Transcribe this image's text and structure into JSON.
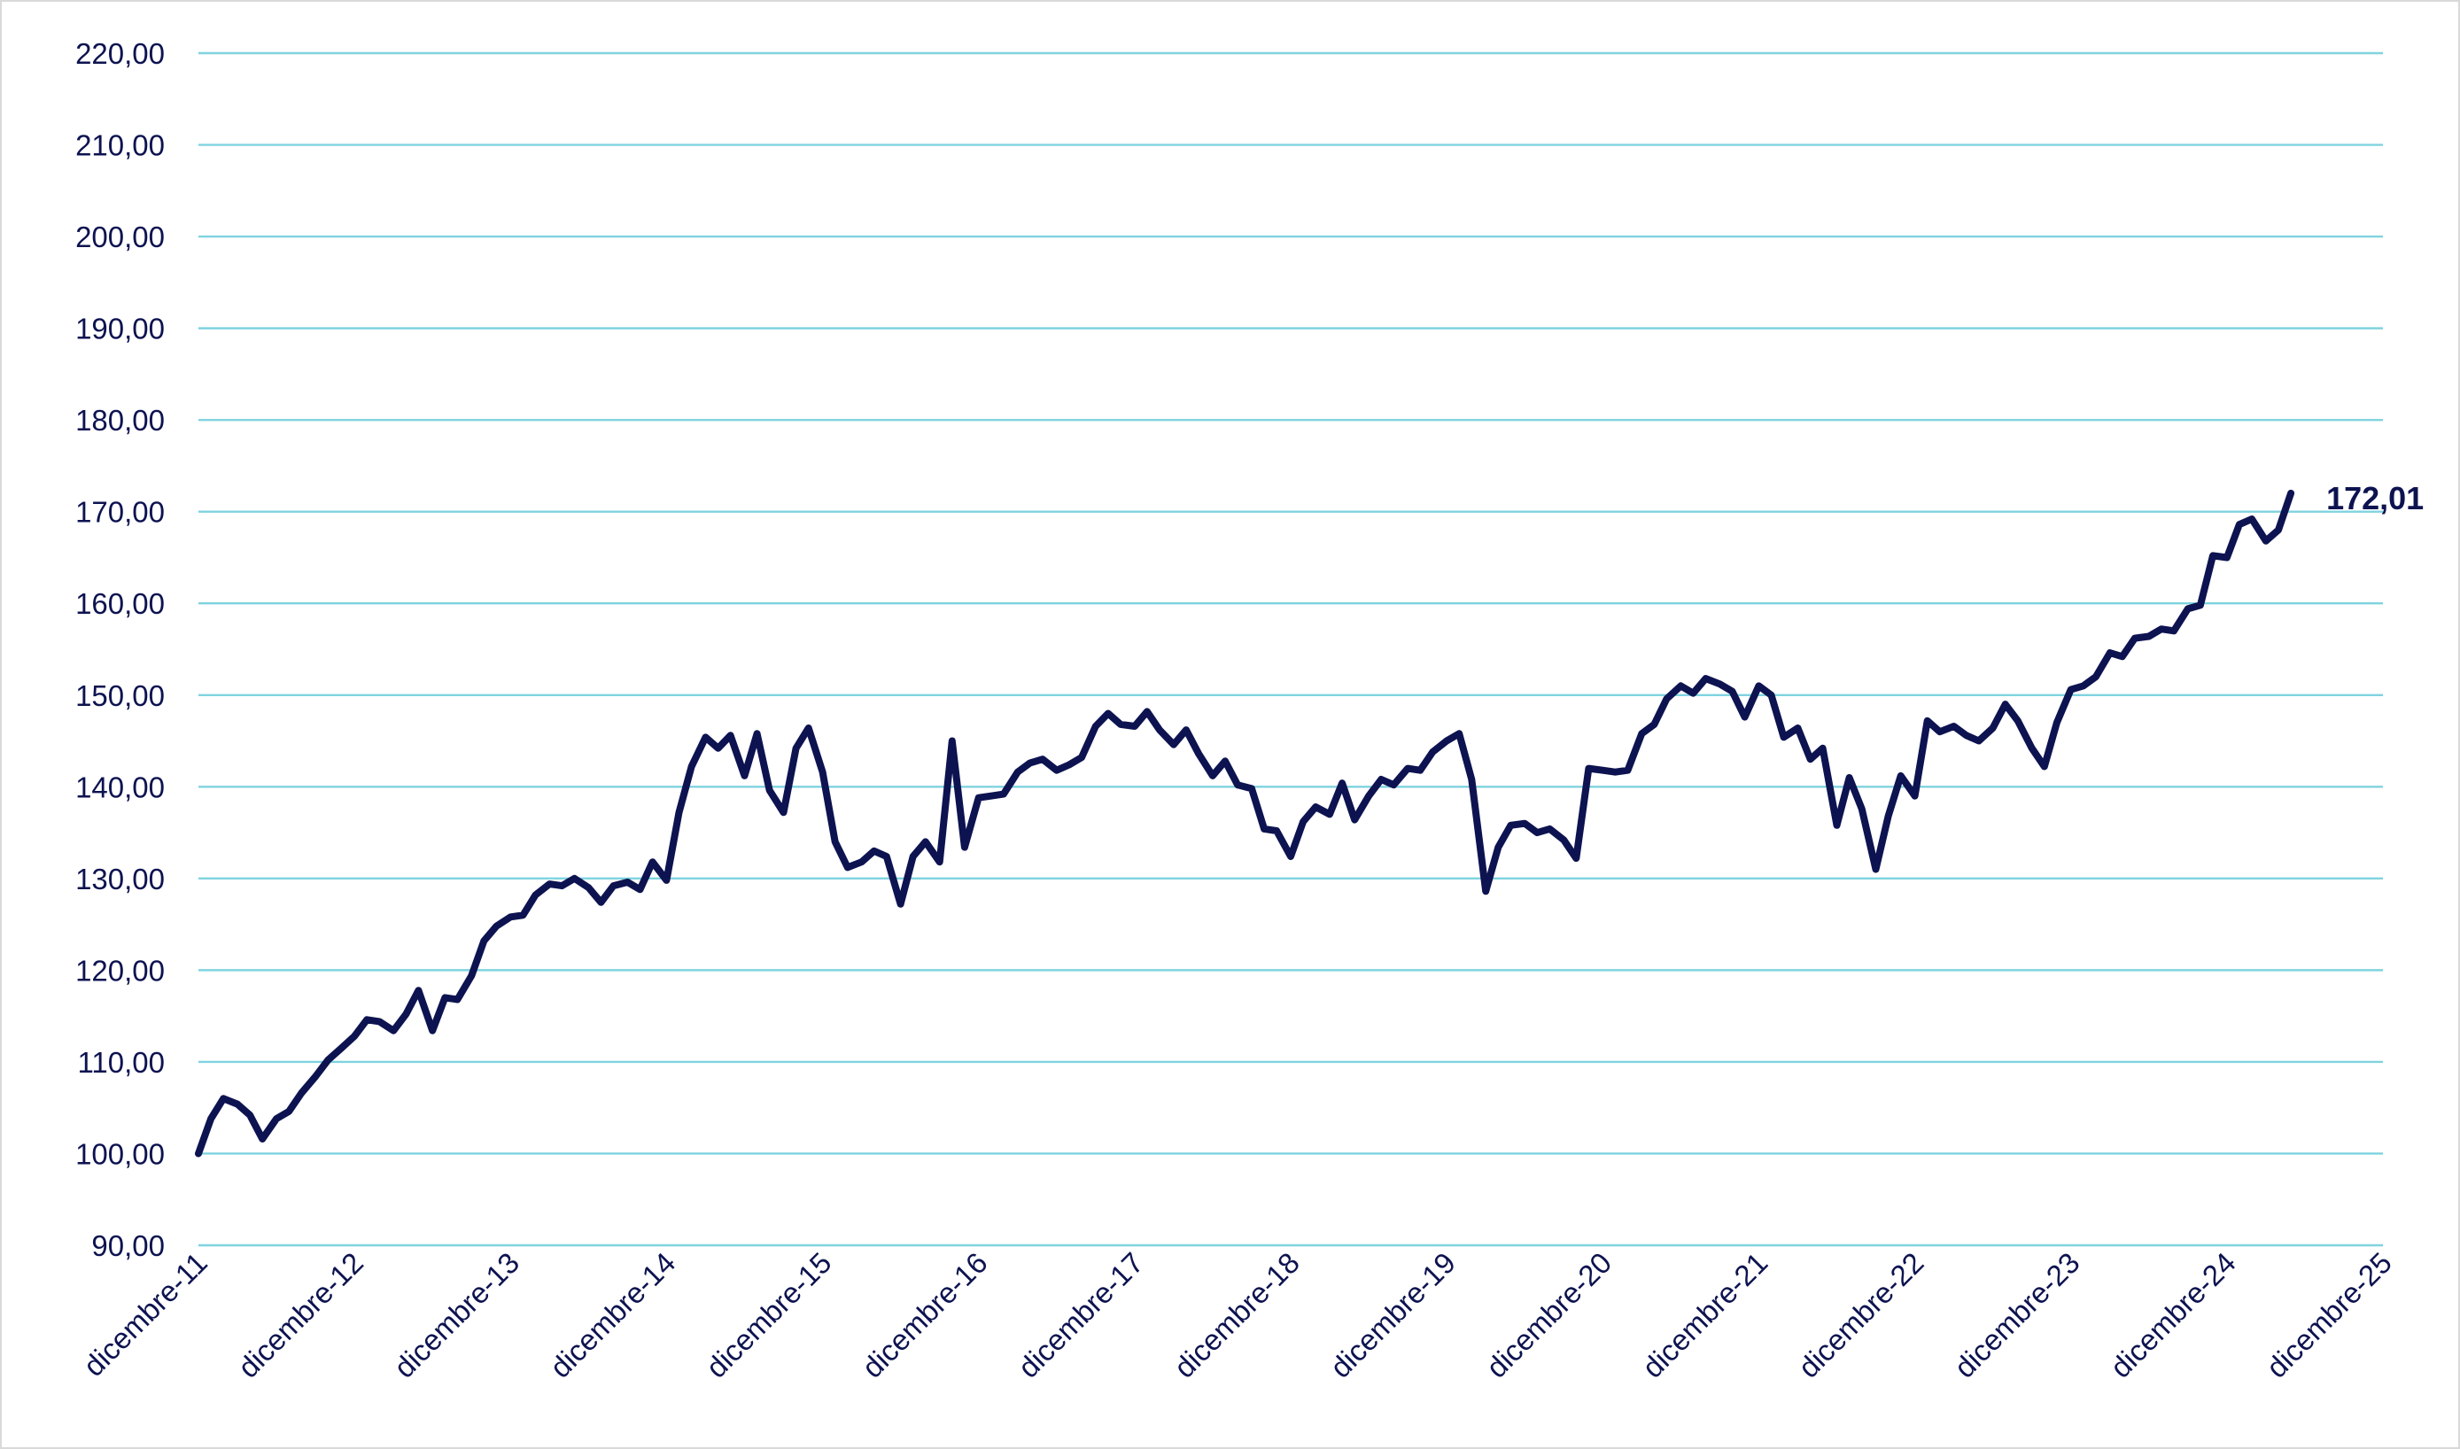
{
  "chart_data": {
    "type": "line",
    "title": "",
    "xlabel": "",
    "ylabel": "",
    "ylim": [
      90,
      220
    ],
    "yticks": [
      "90,00",
      "100,00",
      "110,00",
      "120,00",
      "130,00",
      "140,00",
      "150,00",
      "160,00",
      "170,00",
      "180,00",
      "190,00",
      "200,00",
      "210,00",
      "220,00"
    ],
    "yticks_values": [
      90,
      100,
      110,
      120,
      130,
      140,
      150,
      160,
      170,
      180,
      190,
      200,
      210,
      220
    ],
    "xticks": [
      "dicembre-11",
      "dicembre-12",
      "dicembre-13",
      "dicembre-14",
      "dicembre-15",
      "dicembre-16",
      "dicembre-17",
      "dicembre-18",
      "dicembre-19",
      "dicembre-20",
      "dicembre-21",
      "dicembre-22",
      "dicembre-23",
      "dicembre-24",
      "dicembre-25"
    ],
    "xlim": [
      2011.92,
      2025.92
    ],
    "grid": true,
    "legend": "none",
    "colors": {
      "line": "#0d1350",
      "grid": "#7fd3df",
      "text": "#0d1350"
    },
    "end_label": "172,01",
    "series": [
      {
        "x": [
          2011.92,
          2012.0,
          2012.08,
          2012.17,
          2012.25,
          2012.33,
          2012.42,
          2012.5,
          2012.58,
          2012.67,
          2012.75,
          2012.83,
          2012.92,
          2013.0,
          2013.08,
          2013.17,
          2013.25,
          2013.33,
          2013.42,
          2013.5,
          2013.58,
          2013.67,
          2013.75,
          2013.83,
          2013.92,
          2014.0,
          2014.08,
          2014.17,
          2014.25,
          2014.33,
          2014.42,
          2014.5,
          2014.58,
          2014.67,
          2014.75,
          2014.83,
          2014.92,
          2015.0,
          2015.08,
          2015.17,
          2015.25,
          2015.33,
          2015.42,
          2015.5,
          2015.58,
          2015.67,
          2015.75,
          2015.83,
          2015.92,
          2016.0,
          2016.08,
          2016.17,
          2016.25,
          2016.33,
          2016.42,
          2016.5,
          2016.58,
          2016.67,
          2016.75,
          2016.83,
          2016.92,
          2017.0,
          2017.08,
          2017.17,
          2017.25,
          2017.33,
          2017.42,
          2017.5,
          2017.58,
          2017.67,
          2017.75,
          2017.83,
          2017.92,
          2018.0,
          2018.08,
          2018.17,
          2018.25,
          2018.33,
          2018.42,
          2018.5,
          2018.58,
          2018.67,
          2018.75,
          2018.83,
          2018.92,
          2019.0,
          2019.08,
          2019.17,
          2019.25,
          2019.33,
          2019.42,
          2019.5,
          2019.58,
          2019.67,
          2019.75,
          2019.83,
          2019.92,
          2020.0,
          2020.08,
          2020.17,
          2020.25,
          2020.33,
          2020.42,
          2020.5,
          2020.58,
          2020.67,
          2020.75,
          2020.83,
          2020.92,
          2021.0,
          2021.08,
          2021.17,
          2021.25,
          2021.33,
          2021.42,
          2021.5,
          2021.58,
          2021.67,
          2021.75,
          2021.83,
          2021.92,
          2022.0,
          2022.08,
          2022.17,
          2022.25,
          2022.33,
          2022.42,
          2022.5,
          2022.58,
          2022.67,
          2022.75,
          2022.83,
          2022.92,
          2023.0,
          2023.08,
          2023.17,
          2023.25,
          2023.33,
          2023.42,
          2023.5,
          2023.58,
          2023.67,
          2023.75,
          2023.83,
          2023.92,
          2024.0,
          2024.08,
          2024.17,
          2024.25,
          2024.33,
          2024.42,
          2024.5,
          2024.58,
          2024.67,
          2024.75,
          2024.83,
          2024.92,
          2025.0,
          2025.08,
          2025.17,
          2025.25,
          2025.33
        ],
        "values": [
          100.0,
          103.8,
          106.0,
          105.4,
          104.2,
          101.6,
          103.8,
          104.6,
          106.6,
          108.4,
          110.2,
          111.4,
          112.8,
          114.6,
          114.4,
          113.4,
          115.2,
          117.8,
          113.4,
          117.0,
          116.8,
          119.4,
          123.2,
          124.8,
          125.8,
          126.0,
          128.2,
          129.4,
          129.2,
          130.0,
          129.0,
          127.4,
          129.2,
          129.6,
          128.8,
          131.8,
          129.8,
          137.2,
          142.2,
          145.4,
          144.2,
          145.6,
          141.2,
          145.8,
          139.6,
          137.2,
          144.2,
          146.4,
          141.6,
          134.0,
          131.2,
          131.8,
          133.0,
          132.4,
          127.2,
          132.4,
          134.0,
          131.8,
          145.0,
          133.4,
          138.8,
          139.0,
          139.2,
          141.6,
          142.6,
          143.0,
          141.8,
          142.4,
          143.2,
          146.6,
          148.0,
          146.8,
          146.6,
          148.2,
          146.2,
          144.6,
          146.2,
          143.6,
          141.2,
          142.8,
          140.2,
          139.8,
          135.4,
          135.2,
          132.4,
          136.2,
          137.8,
          137.0,
          140.4,
          136.4,
          139.0,
          140.8,
          140.2,
          142.0,
          141.8,
          143.8,
          145.0,
          145.8,
          140.8,
          128.6,
          133.4,
          135.8,
          136.0,
          135.0,
          135.4,
          134.2,
          132.2,
          142.0,
          141.8,
          141.6,
          141.8,
          145.8,
          146.8,
          149.6,
          151.0,
          150.2,
          151.8,
          151.2,
          150.4,
          147.6,
          151.0,
          150.0,
          145.4,
          146.4,
          143.0,
          144.2,
          135.8,
          141.0,
          137.6,
          131.0,
          136.8,
          141.2,
          139.0,
          147.2,
          146.0,
          146.6,
          145.6,
          145.0,
          146.4,
          149.0,
          147.2,
          144.2,
          142.2,
          147.0,
          150.6,
          151.0,
          152.0,
          154.6,
          154.2,
          156.2,
          156.4,
          157.2,
          157.0,
          159.4,
          159.8,
          165.2,
          165.0,
          168.6,
          169.2,
          166.8,
          168.0,
          172.01
        ]
      }
    ]
  }
}
